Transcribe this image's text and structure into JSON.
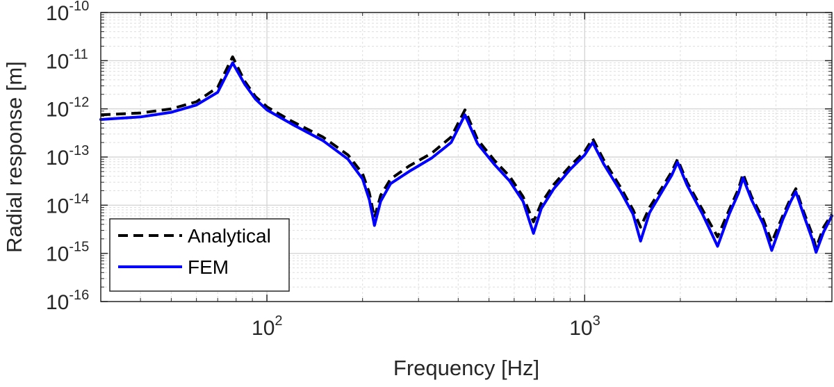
{
  "chart_data": {
    "type": "line",
    "title": "",
    "xlabel": "Frequency [Hz]",
    "ylabel": "Radial response [m]",
    "x_scale": "log",
    "y_scale": "log",
    "xlim": [
      30,
      6000
    ],
    "ylim": [
      1e-16,
      1e-10
    ],
    "x_ticks": [
      {
        "value": 100,
        "base": "10",
        "exp": "2"
      },
      {
        "value": 1000,
        "base": "10",
        "exp": "3"
      }
    ],
    "y_ticks": [
      {
        "value": 1e-10,
        "base": "10",
        "exp": "-10"
      },
      {
        "value": 1e-11,
        "base": "10",
        "exp": "-11"
      },
      {
        "value": 1e-12,
        "base": "10",
        "exp": "-12"
      },
      {
        "value": 1e-13,
        "base": "10",
        "exp": "-13"
      },
      {
        "value": 1e-14,
        "base": "10",
        "exp": "-14"
      },
      {
        "value": 1e-15,
        "base": "10",
        "exp": "-15"
      },
      {
        "value": 1e-16,
        "base": "10",
        "exp": "-16"
      }
    ],
    "grid": true,
    "minor_grid": true,
    "legend_position": "bottom-left",
    "series": [
      {
        "name": "Analytical",
        "color": "#000000",
        "style": "dashed",
        "points": [
          [
            30,
            7.5e-13
          ],
          [
            40,
            8.2e-13
          ],
          [
            50,
            1e-12
          ],
          [
            60,
            1.4e-12
          ],
          [
            70,
            2.8e-12
          ],
          [
            78,
            1.2e-11
          ],
          [
            85,
            3.8e-12
          ],
          [
            92,
            1.8e-12
          ],
          [
            100,
            1.1e-12
          ],
          [
            120,
            5.5e-13
          ],
          [
            150,
            2.6e-13
          ],
          [
            180,
            1.1e-13
          ],
          [
            200,
            4.5e-14
          ],
          [
            210,
            1.8e-14
          ],
          [
            218,
            5.5e-15
          ],
          [
            228,
            1.6e-14
          ],
          [
            245,
            3.5e-14
          ],
          [
            280,
            6.5e-14
          ],
          [
            330,
            1.2e-13
          ],
          [
            380,
            2.6e-13
          ],
          [
            420,
            9.5e-13
          ],
          [
            460,
            2.3e-13
          ],
          [
            520,
            8.5e-14
          ],
          [
            580,
            4e-14
          ],
          [
            640,
            1.5e-14
          ],
          [
            690,
            4.5e-15
          ],
          [
            730,
            1.1e-14
          ],
          [
            800,
            2.7e-14
          ],
          [
            900,
            6.5e-14
          ],
          [
            1000,
            1.3e-13
          ],
          [
            1060,
            2.4e-13
          ],
          [
            1150,
            8.5e-14
          ],
          [
            1300,
            2.3e-14
          ],
          [
            1420,
            8e-15
          ],
          [
            1500,
            3.5e-15
          ],
          [
            1600,
            9e-15
          ],
          [
            1750,
            2.3e-14
          ],
          [
            1880,
            5e-14
          ],
          [
            1960,
            9e-14
          ],
          [
            2100,
            3e-14
          ],
          [
            2350,
            8e-15
          ],
          [
            2620,
            2.2e-15
          ],
          [
            2850,
            8e-15
          ],
          [
            3050,
            2.2e-14
          ],
          [
            3150,
            4.5e-14
          ],
          [
            3350,
            1.5e-14
          ],
          [
            3650,
            5e-15
          ],
          [
            3880,
            1.7e-15
          ],
          [
            4200,
            6e-15
          ],
          [
            4450,
            1.4e-14
          ],
          [
            4620,
            2.2e-14
          ],
          [
            4900,
            7e-15
          ],
          [
            5200,
            2.5e-15
          ],
          [
            5350,
            1.3e-15
          ],
          [
            5650,
            3.5e-15
          ],
          [
            6000,
            6.5e-15
          ]
        ]
      },
      {
        "name": "FEM",
        "color": "#0000FF",
        "style": "solid",
        "points": [
          [
            30,
            6e-13
          ],
          [
            40,
            6.8e-13
          ],
          [
            50,
            8.5e-13
          ],
          [
            60,
            1.2e-12
          ],
          [
            70,
            2.2e-12
          ],
          [
            78,
            9e-12
          ],
          [
            85,
            3.3e-12
          ],
          [
            92,
            1.6e-12
          ],
          [
            100,
            9.5e-13
          ],
          [
            120,
            4.8e-13
          ],
          [
            150,
            2.2e-13
          ],
          [
            180,
            9e-14
          ],
          [
            200,
            3.5e-14
          ],
          [
            210,
            1.3e-14
          ],
          [
            218,
            3.8e-15
          ],
          [
            228,
            1.2e-14
          ],
          [
            245,
            2.8e-14
          ],
          [
            280,
            5e-14
          ],
          [
            330,
            9.5e-14
          ],
          [
            380,
            2e-13
          ],
          [
            420,
            7.5e-13
          ],
          [
            460,
            1.9e-13
          ],
          [
            520,
            7e-14
          ],
          [
            580,
            3.2e-14
          ],
          [
            640,
            1.2e-14
          ],
          [
            690,
            2.6e-15
          ],
          [
            730,
            8.5e-15
          ],
          [
            800,
            2.2e-14
          ],
          [
            900,
            5.5e-14
          ],
          [
            1000,
            1.1e-13
          ],
          [
            1060,
            2e-13
          ],
          [
            1150,
            7e-14
          ],
          [
            1300,
            1.9e-14
          ],
          [
            1420,
            6.5e-15
          ],
          [
            1500,
            1.8e-15
          ],
          [
            1600,
            7e-15
          ],
          [
            1750,
            1.9e-14
          ],
          [
            1880,
            4.2e-14
          ],
          [
            1960,
            7.8e-14
          ],
          [
            2100,
            2.6e-14
          ],
          [
            2350,
            6.5e-15
          ],
          [
            2620,
            1.4e-15
          ],
          [
            2850,
            6.5e-15
          ],
          [
            3050,
            1.8e-14
          ],
          [
            3150,
            3.7e-14
          ],
          [
            3350,
            1.3e-14
          ],
          [
            3650,
            4e-15
          ],
          [
            3880,
            1.15e-15
          ],
          [
            4200,
            5e-15
          ],
          [
            4450,
            1.2e-14
          ],
          [
            4620,
            1.9e-14
          ],
          [
            4900,
            6e-15
          ],
          [
            5200,
            2e-15
          ],
          [
            5350,
            1.05e-15
          ],
          [
            5650,
            2.8e-15
          ],
          [
            6000,
            6e-15
          ]
        ]
      }
    ]
  }
}
